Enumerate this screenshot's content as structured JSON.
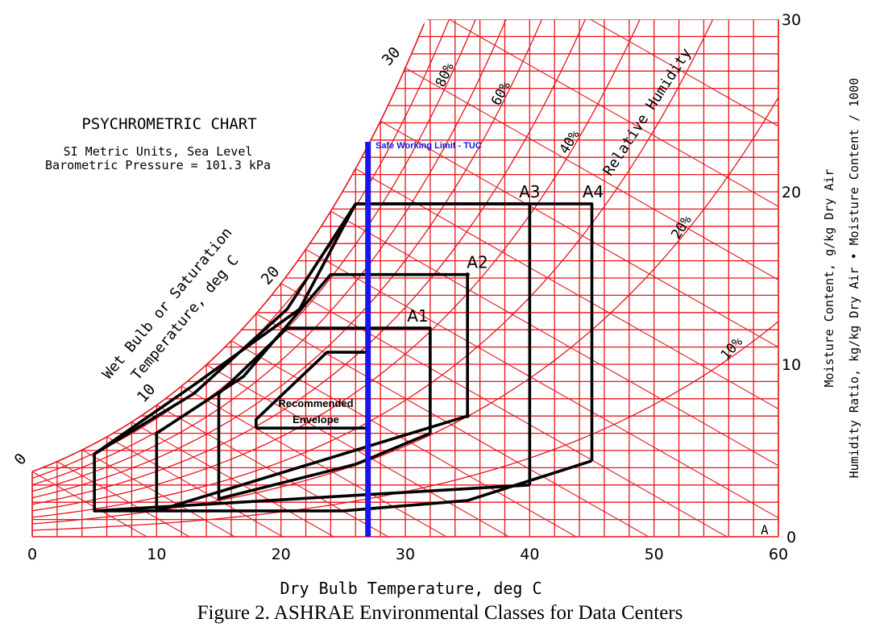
{
  "chart_data": {
    "type": "line",
    "title": "PSYCHROMETRIC CHART",
    "subtitle_line1": "SI Metric Units, Sea Level",
    "subtitle_line2": "Barometric Pressure = 101.3 kPa",
    "xlabel": "Dry Bulb Temperature, deg C",
    "ylabel_right_1": "Moisture Content, g/kg Dry Air",
    "ylabel_right_2": "Humidity Ratio, kg/kg Dry Air • Moisture Content / 1000",
    "wetbulb_label_1": "Wet Bulb or Saturation",
    "wetbulb_label_2": "Temperature, deg C",
    "rh_label": "Relative Humidity",
    "caption": "Figure 2.  ASHRAE Environmental Classes for Data Centers",
    "xlim": [
      0,
      60
    ],
    "ylim": [
      0,
      30
    ],
    "grid": true,
    "colors": {
      "grid": "#e8141c",
      "envelope": "#000000",
      "limit": "#1a14e8",
      "limit_label": "#1a14e8"
    },
    "x_ticks": [
      "0",
      "10",
      "20",
      "30",
      "40",
      "50",
      "60"
    ],
    "y_ticks": [
      "0",
      "10",
      "20",
      "30"
    ],
    "rh_labels": [
      "80%",
      "60%",
      "40%",
      "20%",
      "10%"
    ],
    "rh_values": [
      0.8,
      0.6,
      0.4,
      0.2,
      0.1
    ],
    "wetbulb_ticks": [
      "0",
      "10",
      "20",
      "30"
    ],
    "corner_mark": "A",
    "limit_line": {
      "label": "Safe Working Limit - TUC",
      "x": 27,
      "y_range": [
        0,
        22.9
      ]
    },
    "envelope_label_1": "Recommended",
    "envelope_label_2": "Envelope",
    "classes": [
      {
        "name": "Recommended",
        "label": "",
        "points": [
          [
            18,
            6.3
          ],
          [
            27,
            6.3
          ],
          [
            27,
            10.7
          ],
          [
            23.7,
            10.7
          ],
          [
            18,
            6.8
          ],
          [
            18,
            6.3
          ]
        ]
      },
      {
        "name": "A1",
        "label": "A1",
        "points": [
          [
            32,
            6.0
          ],
          [
            32,
            12.1
          ],
          [
            20.5,
            12.1
          ],
          [
            15,
            8.3
          ],
          [
            15,
            2.2
          ],
          [
            26,
            4.2
          ],
          [
            32,
            6.0
          ]
        ]
      },
      {
        "name": "A2",
        "label": "A2",
        "points": [
          [
            35,
            7.0
          ],
          [
            35,
            15.2
          ],
          [
            24,
            15.2
          ],
          [
            17,
            9.3
          ],
          [
            10,
            6.0
          ],
          [
            10,
            1.5
          ],
          [
            35,
            7.0
          ]
        ]
      },
      {
        "name": "A3",
        "label": "A3",
        "points": [
          [
            40,
            3.0
          ],
          [
            40,
            19.3
          ],
          [
            26,
            19.3
          ],
          [
            20.5,
            13.2
          ],
          [
            13,
            8.3
          ],
          [
            5,
            4.8
          ],
          [
            5,
            1.5
          ],
          [
            40,
            3.0
          ]
        ]
      },
      {
        "name": "A4",
        "label": "A4",
        "points": [
          [
            45,
            4.4
          ],
          [
            45,
            19.3
          ],
          [
            26,
            19.3
          ],
          [
            21.5,
            13.2
          ],
          [
            13,
            8.8
          ],
          [
            5,
            4.8
          ]
        ]
      },
      {
        "name": "lower-boundary",
        "label": "",
        "points": [
          [
            5,
            1.5
          ],
          [
            25,
            1.5
          ],
          [
            35,
            2.1
          ],
          [
            45,
            4.4
          ]
        ]
      }
    ]
  }
}
